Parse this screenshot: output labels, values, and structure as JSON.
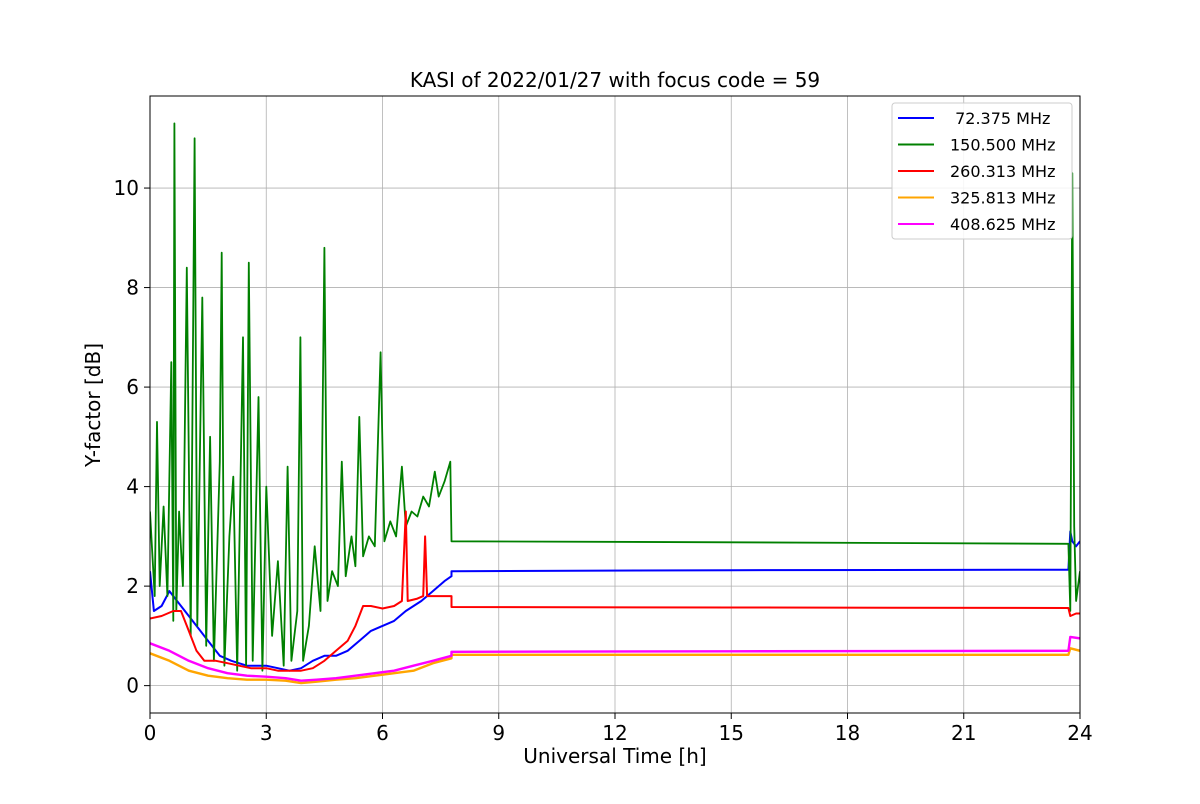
{
  "chart_data": {
    "type": "line",
    "title": "KASI of 2022/01/27 with focus code = 59",
    "xlabel": "Universal Time [h]",
    "ylabel": "Y-factor [dB]",
    "xlim": [
      0,
      24
    ],
    "ylim": [
      -0.55,
      11.85
    ],
    "xticks": [
      0,
      3,
      6,
      9,
      12,
      15,
      18,
      21,
      24
    ],
    "yticks": [
      0,
      2,
      4,
      6,
      8,
      10
    ],
    "grid": true,
    "legend_position": "top-right",
    "series": [
      {
        "name": " 72.375 MHz",
        "color": "#0000ff",
        "points": [
          [
            0,
            2.3
          ],
          [
            0.1,
            1.5
          ],
          [
            0.3,
            1.6
          ],
          [
            0.5,
            1.9
          ],
          [
            0.7,
            1.7
          ],
          [
            1.0,
            1.4
          ],
          [
            1.3,
            1.1
          ],
          [
            1.5,
            0.9
          ],
          [
            1.8,
            0.6
          ],
          [
            2.1,
            0.5
          ],
          [
            2.5,
            0.4
          ],
          [
            3.0,
            0.4
          ],
          [
            3.3,
            0.35
          ],
          [
            3.6,
            0.3
          ],
          [
            3.9,
            0.35
          ],
          [
            4.2,
            0.5
          ],
          [
            4.5,
            0.6
          ],
          [
            4.8,
            0.6
          ],
          [
            5.1,
            0.7
          ],
          [
            5.4,
            0.9
          ],
          [
            5.7,
            1.1
          ],
          [
            6.0,
            1.2
          ],
          [
            6.3,
            1.3
          ],
          [
            6.6,
            1.5
          ],
          [
            7.0,
            1.7
          ],
          [
            7.3,
            1.9
          ],
          [
            7.6,
            2.1
          ],
          [
            7.78,
            2.2
          ],
          [
            7.78,
            2.3
          ],
          [
            15,
            2.32
          ],
          [
            23.7,
            2.33
          ],
          [
            23.75,
            3.1
          ],
          [
            23.8,
            2.9
          ],
          [
            23.9,
            2.8
          ],
          [
            24,
            2.9
          ]
        ]
      },
      {
        "name": "150.500 MHz",
        "color": "#008000",
        "points": [
          [
            0,
            3.5
          ],
          [
            0.05,
            2.8
          ],
          [
            0.12,
            1.8
          ],
          [
            0.18,
            5.3
          ],
          [
            0.25,
            2.0
          ],
          [
            0.35,
            3.6
          ],
          [
            0.45,
            1.8
          ],
          [
            0.55,
            6.5
          ],
          [
            0.6,
            1.3
          ],
          [
            0.63,
            11.3
          ],
          [
            0.68,
            1.5
          ],
          [
            0.75,
            3.5
          ],
          [
            0.85,
            2.0
          ],
          [
            0.95,
            8.4
          ],
          [
            1.05,
            1.0
          ],
          [
            1.15,
            11.0
          ],
          [
            1.22,
            1.2
          ],
          [
            1.35,
            7.8
          ],
          [
            1.45,
            0.8
          ],
          [
            1.55,
            5.0
          ],
          [
            1.65,
            0.5
          ],
          [
            1.8,
            4.5
          ],
          [
            1.85,
            8.7
          ],
          [
            1.92,
            0.4
          ],
          [
            2.05,
            3.0
          ],
          [
            2.15,
            4.2
          ],
          [
            2.25,
            0.3
          ],
          [
            2.4,
            7.0
          ],
          [
            2.48,
            0.4
          ],
          [
            2.55,
            8.5
          ],
          [
            2.65,
            0.5
          ],
          [
            2.8,
            5.8
          ],
          [
            2.9,
            0.3
          ],
          [
            3.0,
            4.0
          ],
          [
            3.15,
            1.0
          ],
          [
            3.3,
            2.5
          ],
          [
            3.45,
            0.4
          ],
          [
            3.55,
            4.4
          ],
          [
            3.65,
            0.5
          ],
          [
            3.8,
            1.5
          ],
          [
            3.88,
            7.0
          ],
          [
            3.95,
            0.5
          ],
          [
            4.1,
            1.2
          ],
          [
            4.25,
            2.8
          ],
          [
            4.4,
            1.5
          ],
          [
            4.5,
            8.8
          ],
          [
            4.58,
            1.7
          ],
          [
            4.7,
            2.3
          ],
          [
            4.85,
            2.0
          ],
          [
            4.95,
            4.5
          ],
          [
            5.05,
            2.2
          ],
          [
            5.2,
            3.0
          ],
          [
            5.3,
            2.4
          ],
          [
            5.4,
            5.4
          ],
          [
            5.5,
            2.6
          ],
          [
            5.65,
            3.0
          ],
          [
            5.8,
            2.8
          ],
          [
            5.95,
            6.7
          ],
          [
            6.05,
            2.9
          ],
          [
            6.2,
            3.3
          ],
          [
            6.35,
            3.0
          ],
          [
            6.5,
            4.4
          ],
          [
            6.6,
            3.2
          ],
          [
            6.75,
            3.5
          ],
          [
            6.9,
            3.4
          ],
          [
            7.05,
            3.8
          ],
          [
            7.2,
            3.6
          ],
          [
            7.35,
            4.3
          ],
          [
            7.45,
            3.8
          ],
          [
            7.6,
            4.1
          ],
          [
            7.75,
            4.5
          ],
          [
            7.78,
            2.9
          ],
          [
            15,
            2.88
          ],
          [
            23.7,
            2.85
          ],
          [
            23.75,
            1.5
          ],
          [
            23.8,
            10.3
          ],
          [
            23.85,
            3.2
          ],
          [
            23.9,
            1.7
          ],
          [
            24,
            2.3
          ]
        ]
      },
      {
        "name": "260.313 MHz",
        "color": "#ff0000",
        "points": [
          [
            0,
            1.35
          ],
          [
            0.3,
            1.4
          ],
          [
            0.6,
            1.5
          ],
          [
            0.8,
            1.5
          ],
          [
            1.0,
            1.1
          ],
          [
            1.2,
            0.7
          ],
          [
            1.4,
            0.5
          ],
          [
            1.7,
            0.5
          ],
          [
            2.0,
            0.45
          ],
          [
            2.3,
            0.4
          ],
          [
            2.6,
            0.35
          ],
          [
            3.0,
            0.35
          ],
          [
            3.3,
            0.3
          ],
          [
            3.6,
            0.3
          ],
          [
            3.9,
            0.3
          ],
          [
            4.2,
            0.35
          ],
          [
            4.5,
            0.5
          ],
          [
            4.8,
            0.7
          ],
          [
            5.1,
            0.9
          ],
          [
            5.3,
            1.2
          ],
          [
            5.5,
            1.6
          ],
          [
            5.7,
            1.6
          ],
          [
            6.0,
            1.55
          ],
          [
            6.3,
            1.6
          ],
          [
            6.5,
            1.7
          ],
          [
            6.6,
            3.5
          ],
          [
            6.65,
            1.7
          ],
          [
            6.9,
            1.75
          ],
          [
            7.05,
            1.8
          ],
          [
            7.1,
            3.0
          ],
          [
            7.15,
            1.8
          ],
          [
            7.4,
            1.8
          ],
          [
            7.6,
            1.8
          ],
          [
            7.78,
            1.8
          ],
          [
            7.78,
            1.58
          ],
          [
            15,
            1.57
          ],
          [
            23.7,
            1.56
          ],
          [
            23.75,
            1.4
          ],
          [
            23.9,
            1.45
          ],
          [
            24,
            1.45
          ]
        ]
      },
      {
        "name": "325.813 MHz",
        "color": "#ffa500",
        "points": [
          [
            0,
            0.65
          ],
          [
            0.5,
            0.5
          ],
          [
            1.0,
            0.3
          ],
          [
            1.5,
            0.2
          ],
          [
            2.0,
            0.15
          ],
          [
            2.5,
            0.12
          ],
          [
            3.0,
            0.12
          ],
          [
            3.5,
            0.1
          ],
          [
            3.9,
            0.05
          ],
          [
            4.3,
            0.08
          ],
          [
            4.8,
            0.12
          ],
          [
            5.3,
            0.15
          ],
          [
            5.8,
            0.2
          ],
          [
            6.3,
            0.25
          ],
          [
            6.8,
            0.3
          ],
          [
            7.3,
            0.45
          ],
          [
            7.78,
            0.55
          ],
          [
            7.78,
            0.62
          ],
          [
            15,
            0.62
          ],
          [
            23.7,
            0.62
          ],
          [
            23.75,
            0.75
          ],
          [
            24,
            0.7
          ]
        ]
      },
      {
        "name": "408.625 MHz",
        "color": "#ff00ff",
        "points": [
          [
            0,
            0.85
          ],
          [
            0.5,
            0.7
          ],
          [
            1.0,
            0.5
          ],
          [
            1.5,
            0.35
          ],
          [
            2.0,
            0.25
          ],
          [
            2.5,
            0.2
          ],
          [
            3.0,
            0.18
          ],
          [
            3.5,
            0.15
          ],
          [
            3.9,
            0.1
          ],
          [
            4.3,
            0.12
          ],
          [
            4.8,
            0.15
          ],
          [
            5.3,
            0.2
          ],
          [
            5.8,
            0.25
          ],
          [
            6.3,
            0.3
          ],
          [
            6.8,
            0.4
          ],
          [
            7.3,
            0.5
          ],
          [
            7.78,
            0.6
          ],
          [
            7.78,
            0.68
          ],
          [
            15,
            0.69
          ],
          [
            23.7,
            0.7
          ],
          [
            23.75,
            0.98
          ],
          [
            24,
            0.95
          ]
        ]
      }
    ]
  }
}
